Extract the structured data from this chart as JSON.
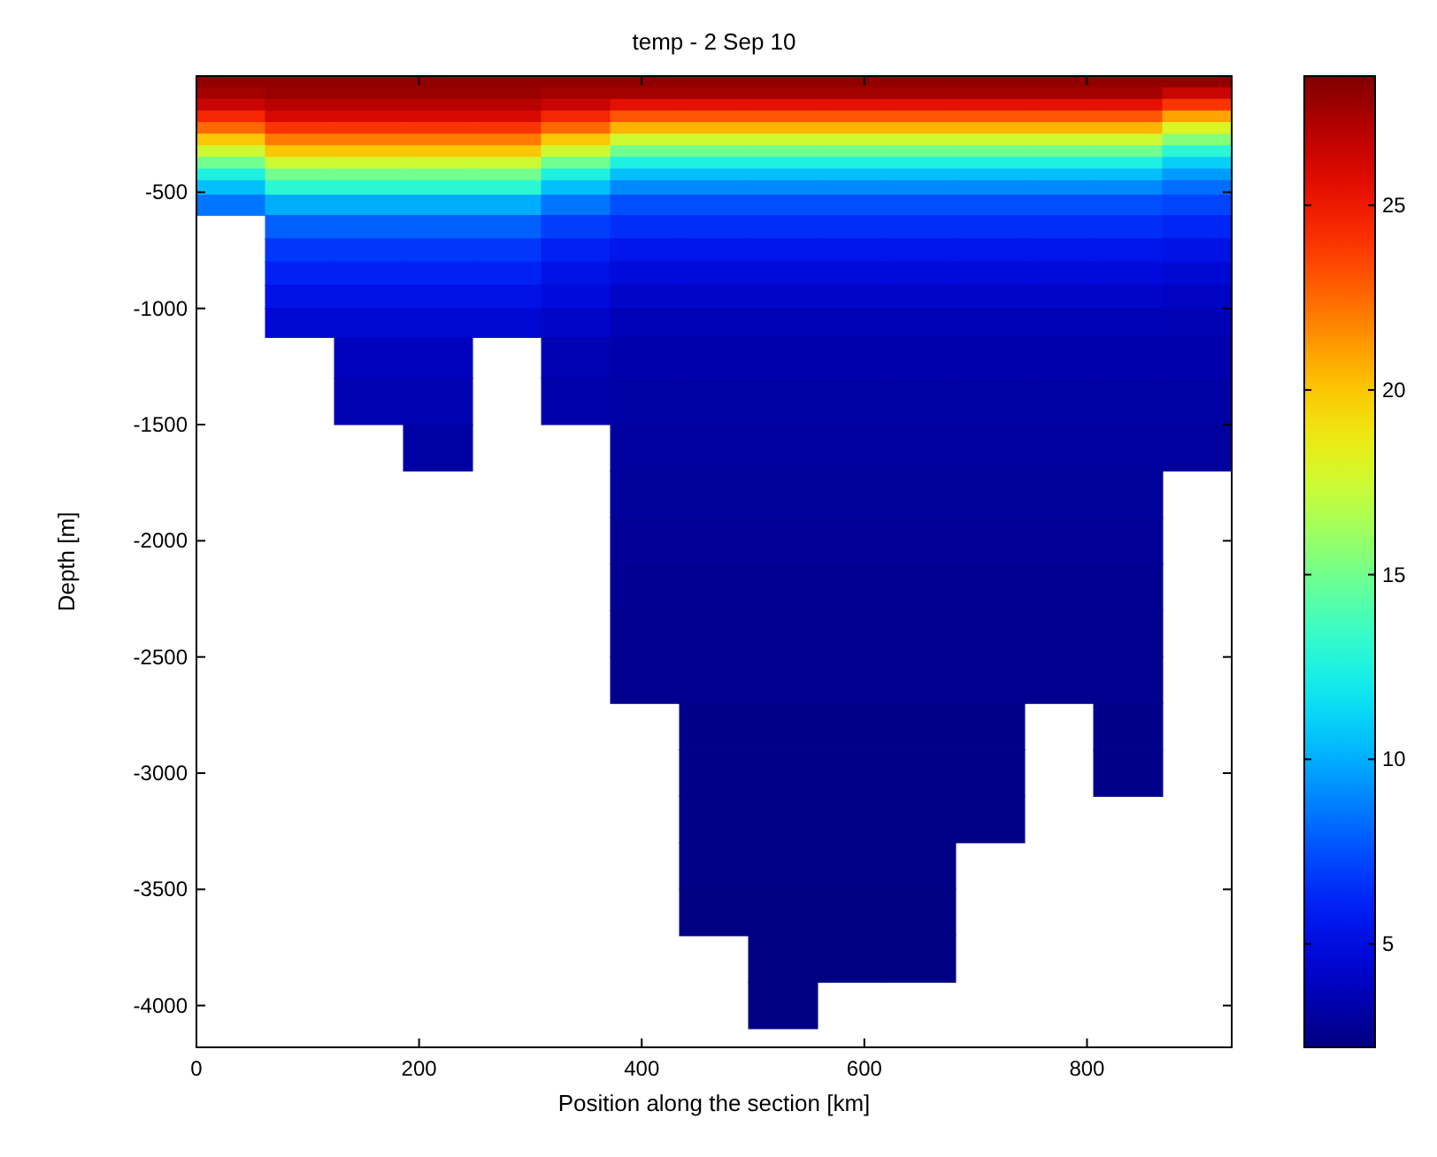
{
  "chart_data": {
    "type": "heatmap",
    "title": "temp - 2 Sep 10",
    "xlabel": "Position along the section [km]",
    "ylabel": "Depth [m]",
    "x": [
      31,
      93,
      155,
      217,
      279,
      341,
      403,
      465,
      527,
      589,
      651,
      713,
      775,
      837,
      899
    ],
    "y": [
      -25,
      -75,
      -125,
      -175,
      -225,
      -275,
      -325,
      -375,
      -425,
      -475,
      -550,
      -650,
      -750,
      -850,
      -950,
      -1050,
      -1200,
      -1400,
      -1600,
      -1800,
      -2000,
      -2200,
      -2400,
      -2600,
      -2800,
      -3000,
      -3200,
      -3400,
      -3600,
      -3800,
      -4000
    ],
    "cells": [
      [
        28,
        28,
        28,
        28,
        28,
        28,
        28,
        28,
        28,
        28,
        28,
        28,
        28,
        28,
        28
      ],
      [
        27.5,
        27.8,
        27.8,
        27.8,
        27.8,
        27.5,
        27.5,
        27.5,
        27.5,
        27.5,
        27.5,
        27.5,
        27.5,
        27.5,
        26.5
      ],
      [
        26.5,
        27,
        27,
        27,
        27,
        26.5,
        25.5,
        25.5,
        25.5,
        25.5,
        25.5,
        25.5,
        25.5,
        25.5,
        24
      ],
      [
        24.5,
        26,
        26,
        26,
        26,
        24.5,
        23,
        23,
        23,
        23,
        23,
        23,
        23,
        23,
        21
      ],
      [
        22.5,
        24,
        24,
        24,
        24,
        22.5,
        20.5,
        20.5,
        20.5,
        20.5,
        20.5,
        20.5,
        20.5,
        20.5,
        18
      ],
      [
        20,
        22,
        22,
        22,
        22,
        20,
        17.5,
        17.5,
        17.5,
        17.5,
        17.5,
        17.5,
        17.5,
        17.5,
        15.5
      ],
      [
        17.5,
        20,
        20,
        20,
        20,
        17.5,
        15,
        15,
        15,
        15,
        15,
        15,
        15,
        15,
        13
      ],
      [
        15,
        17.5,
        17.5,
        17.5,
        17.5,
        15,
        12.5,
        12.5,
        12.5,
        12.5,
        12.5,
        12.5,
        12.5,
        12.5,
        11
      ],
      [
        12.5,
        15,
        15,
        15,
        15,
        12.5,
        10.5,
        10.5,
        10.5,
        10.5,
        10.5,
        10.5,
        10.5,
        10.5,
        9.5
      ],
      [
        10.5,
        13,
        13,
        13,
        13,
        10.5,
        9,
        9,
        9,
        9,
        9,
        9,
        9,
        9,
        8.3
      ],
      [
        8.5,
        10,
        10,
        10,
        10,
        8.5,
        7.5,
        7.5,
        7.5,
        7.5,
        7.5,
        7.5,
        7.5,
        7.5,
        7.2
      ],
      [
        null,
        8,
        8,
        8,
        8,
        7,
        6.5,
        6.5,
        6.5,
        6.5,
        6.5,
        6.5,
        6.5,
        6.5,
        6.2
      ],
      [
        null,
        6.8,
        6.8,
        6.8,
        6.8,
        6,
        5.5,
        5.5,
        5.5,
        5.5,
        5.5,
        5.5,
        5.5,
        5.5,
        5.3
      ],
      [
        null,
        6,
        6,
        6,
        6,
        5.3,
        4.8,
        4.8,
        4.8,
        4.8,
        4.8,
        4.8,
        4.8,
        4.8,
        4.6
      ],
      [
        null,
        5.3,
        5.3,
        5.3,
        5.3,
        4.8,
        4.2,
        4.2,
        4.2,
        4.2,
        4.2,
        4.2,
        4.2,
        4.2,
        4
      ],
      [
        null,
        4.6,
        4.6,
        4.6,
        4.6,
        4.2,
        3.7,
        3.7,
        3.7,
        3.7,
        3.7,
        3.7,
        3.7,
        3.7,
        3.6
      ],
      [
        null,
        null,
        3.9,
        3.9,
        null,
        3.6,
        3.4,
        3.4,
        3.4,
        3.4,
        3.4,
        3.4,
        3.4,
        3.4,
        3.4
      ],
      [
        null,
        null,
        3.5,
        3.5,
        null,
        3.3,
        3.2,
        3.2,
        3.2,
        3.2,
        3.2,
        3.2,
        3.2,
        3.2,
        3.2
      ],
      [
        null,
        null,
        null,
        3.2,
        null,
        null,
        3,
        3,
        3,
        3,
        3,
        3,
        3,
        3,
        3
      ],
      [
        null,
        null,
        null,
        null,
        null,
        null,
        2.9,
        2.9,
        2.9,
        2.9,
        2.9,
        2.9,
        2.9,
        2.9,
        null
      ],
      [
        null,
        null,
        null,
        null,
        null,
        null,
        2.8,
        2.8,
        2.8,
        2.8,
        2.8,
        2.8,
        2.8,
        2.8,
        null
      ],
      [
        null,
        null,
        null,
        null,
        null,
        null,
        2.7,
        2.7,
        2.7,
        2.7,
        2.7,
        2.7,
        2.7,
        2.7,
        null
      ],
      [
        null,
        null,
        null,
        null,
        null,
        null,
        2.6,
        2.6,
        2.6,
        2.6,
        2.6,
        2.6,
        2.6,
        2.6,
        null
      ],
      [
        null,
        null,
        null,
        null,
        null,
        null,
        2.6,
        2.6,
        2.6,
        2.6,
        2.6,
        2.6,
        2.6,
        2.6,
        null
      ],
      [
        null,
        null,
        null,
        null,
        null,
        null,
        null,
        2.5,
        2.5,
        2.5,
        2.5,
        2.5,
        null,
        2.5,
        null
      ],
      [
        null,
        null,
        null,
        null,
        null,
        null,
        null,
        2.5,
        2.5,
        2.5,
        2.5,
        2.5,
        null,
        2.5,
        null
      ],
      [
        null,
        null,
        null,
        null,
        null,
        null,
        null,
        2.4,
        2.4,
        2.4,
        2.4,
        2.4,
        null,
        null,
        null
      ],
      [
        null,
        null,
        null,
        null,
        null,
        null,
        null,
        2.4,
        2.4,
        2.4,
        2.4,
        null,
        null,
        null,
        null
      ],
      [
        null,
        null,
        null,
        null,
        null,
        null,
        null,
        2.3,
        2.3,
        2.3,
        2.3,
        null,
        null,
        null,
        null
      ],
      [
        null,
        null,
        null,
        null,
        null,
        null,
        null,
        null,
        2.3,
        2.3,
        2.3,
        null,
        null,
        null,
        null
      ],
      [
        null,
        null,
        null,
        null,
        null,
        null,
        null,
        null,
        2.3,
        null,
        null,
        null,
        null,
        null,
        null
      ]
    ],
    "xlim": [
      0,
      930
    ],
    "xticks": [
      0,
      200,
      400,
      600,
      800
    ],
    "ylim": [
      -4180,
      0
    ],
    "yticks": [
      -4000,
      -3500,
      -3000,
      -2500,
      -2000,
      -1500,
      -1000,
      -500
    ],
    "clim": [
      2.2,
      28.5
    ],
    "cticks": [
      5,
      10,
      15,
      20,
      25
    ]
  }
}
